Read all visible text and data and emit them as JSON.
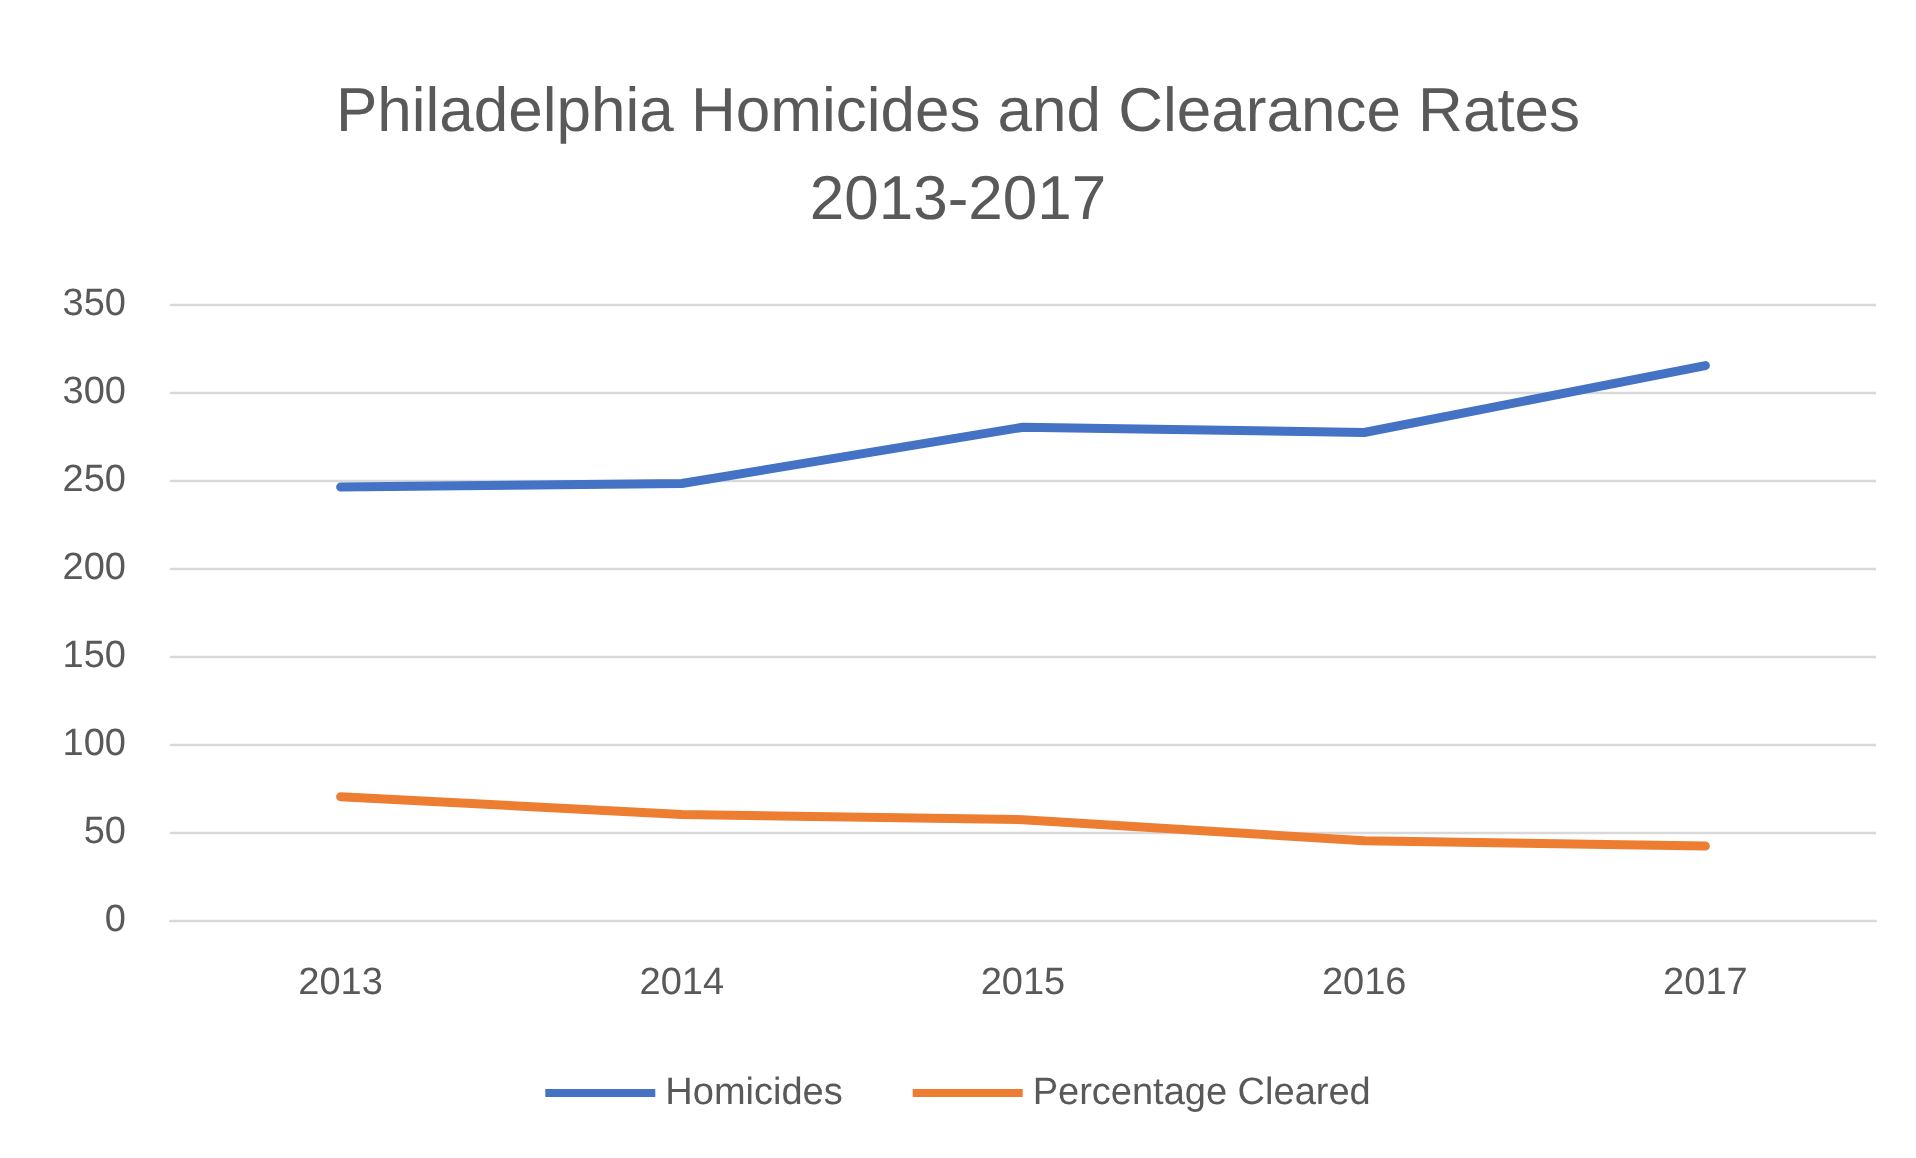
{
  "chart_data": {
    "type": "line",
    "title": "Philadelphia Homicides and Clearance Rates\n2013-2017",
    "categories": [
      "2013",
      "2014",
      "2015",
      "2016",
      "2017"
    ],
    "series": [
      {
        "name": "Homicides",
        "color": "#4472c4",
        "values": [
          246,
          248,
          280,
          277,
          315
        ]
      },
      {
        "name": "Percentage Cleared",
        "color": "#ed7d31",
        "values": [
          70,
          60,
          57,
          45,
          42
        ]
      }
    ],
    "ylim": [
      0,
      350
    ],
    "yticks": [
      0,
      50,
      100,
      150,
      200,
      250,
      300,
      350
    ],
    "grid": "y",
    "legend": "bottom",
    "marker": "none"
  }
}
